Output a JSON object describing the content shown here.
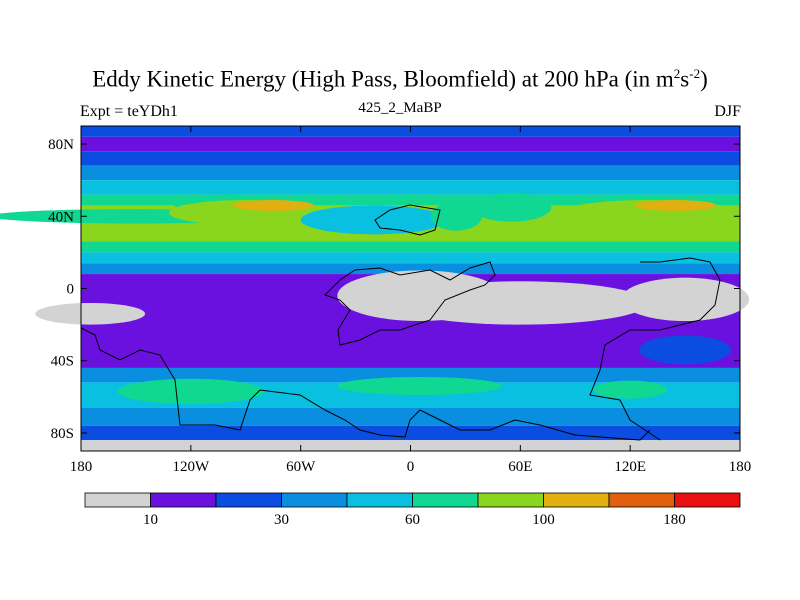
{
  "title": {
    "main": "Eddy Kinetic Energy (High Pass, Bloomfield) at 200 hPa (in m",
    "sup1": "2",
    "mid": "s",
    "sup2": "-2",
    "end": ")"
  },
  "subtitle": "425_2_MaBP",
  "left_label": "Expt = teYDh1",
  "right_label": "DJF",
  "axes": {
    "lat_ticks": [
      {
        "label": "80N",
        "lat": 80
      },
      {
        "label": "40N",
        "lat": 40
      },
      {
        "label": "0",
        "lat": 0
      },
      {
        "label": "40S",
        "lat": -40
      },
      {
        "label": "80S",
        "lat": -80
      }
    ],
    "lon_ticks": [
      {
        "label": "180",
        "lon": -180
      },
      {
        "label": "120W",
        "lon": -120
      },
      {
        "label": "60W",
        "lon": -60
      },
      {
        "label": "0",
        "lon": 0
      },
      {
        "label": "60E",
        "lon": 60
      },
      {
        "label": "120E",
        "lon": 120
      },
      {
        "label": "180",
        "lon": 180
      }
    ]
  },
  "colorbar": {
    "colors": [
      "#d3d3d3",
      "#6a11e0",
      "#0a4de0",
      "#0a8ee0",
      "#0ac0e0",
      "#10d892",
      "#8ad61e",
      "#e0b010",
      "#e06010",
      "#e81010"
    ],
    "labels": [
      {
        "text": "10",
        "boundary": 1
      },
      {
        "text": "30",
        "boundary": 3
      },
      {
        "text": "60",
        "boundary": 5
      },
      {
        "text": "100",
        "boundary": 7
      },
      {
        "text": "180",
        "boundary": 9
      }
    ]
  },
  "map_data": {
    "lon_range": [
      -180,
      180
    ],
    "lat_range": [
      -90,
      90
    ],
    "bands": [
      {
        "lat_top": 90,
        "lat_bot": 84,
        "level": 2
      },
      {
        "lat_top": 84,
        "lat_bot": 76,
        "level": 1
      },
      {
        "lat_top": 76,
        "lat_bot": 68,
        "level": 2
      },
      {
        "lat_top": 68,
        "lat_bot": 60,
        "level": 3
      },
      {
        "lat_top": 60,
        "lat_bot": 52,
        "level": 4
      },
      {
        "lat_top": 52,
        "lat_bot": 46,
        "level": 5
      },
      {
        "lat_top": 46,
        "lat_bot": 26,
        "level": 6
      },
      {
        "lat_top": 26,
        "lat_bot": 20,
        "level": 5
      },
      {
        "lat_top": 20,
        "lat_bot": 14,
        "level": 4
      },
      {
        "lat_top": 14,
        "lat_bot": 8,
        "level": 3
      },
      {
        "lat_top": 8,
        "lat_bot": -44,
        "level": 1
      },
      {
        "lat_top": -44,
        "lat_bot": -52,
        "level": 3
      },
      {
        "lat_top": -52,
        "lat_bot": -66,
        "level": 4
      },
      {
        "lat_top": -66,
        "lat_bot": -76,
        "level": 3
      },
      {
        "lat_top": -76,
        "lat_bot": -84,
        "level": 2
      },
      {
        "lat_top": -84,
        "lat_bot": -90,
        "level": 0
      }
    ],
    "blobs": [
      {
        "lon": -150,
        "lat": 40,
        "rlon": 80,
        "rlat": 4,
        "level": 5
      },
      {
        "lon": -100,
        "lat": 47,
        "rlon": 30,
        "rlat": 5,
        "level": 5
      },
      {
        "lon": -90,
        "lat": 42,
        "rlon": 42,
        "rlat": 7,
        "level": 6
      },
      {
        "lon": -75,
        "lat": 46,
        "rlon": 22,
        "rlat": 3,
        "level": 7
      },
      {
        "lon": -20,
        "lat": 38,
        "rlon": 40,
        "rlat": 8,
        "level": 4
      },
      {
        "lon": 25,
        "lat": 40,
        "rlon": 14,
        "rlat": 8,
        "level": 5
      },
      {
        "lon": 55,
        "lat": 45,
        "rlon": 22,
        "rlat": 8,
        "level": 5
      },
      {
        "lon": 130,
        "lat": 42,
        "rlon": 48,
        "rlat": 7,
        "level": 6
      },
      {
        "lon": 145,
        "lat": 46,
        "rlon": 22,
        "rlat": 3,
        "level": 7
      },
      {
        "lon": 60,
        "lat": -8,
        "rlon": 70,
        "rlat": 12,
        "level": 0
      },
      {
        "lon": 5,
        "lat": -4,
        "rlon": 45,
        "rlat": 14,
        "level": 0
      },
      {
        "lon": 150,
        "lat": -6,
        "rlon": 35,
        "rlat": 12,
        "level": 0
      },
      {
        "lon": -175,
        "lat": -14,
        "rlon": 30,
        "rlat": 6,
        "level": 0
      },
      {
        "lon": -120,
        "lat": -57,
        "rlon": 40,
        "rlat": 7,
        "level": 5
      },
      {
        "lon": 5,
        "lat": -54,
        "rlon": 45,
        "rlat": 5,
        "level": 5
      },
      {
        "lon": 120,
        "lat": -56,
        "rlon": 20,
        "rlat": 5,
        "level": 5
      },
      {
        "lon": 150,
        "lat": -34,
        "rlon": 25,
        "rlat": 8,
        "level": 2
      }
    ]
  }
}
